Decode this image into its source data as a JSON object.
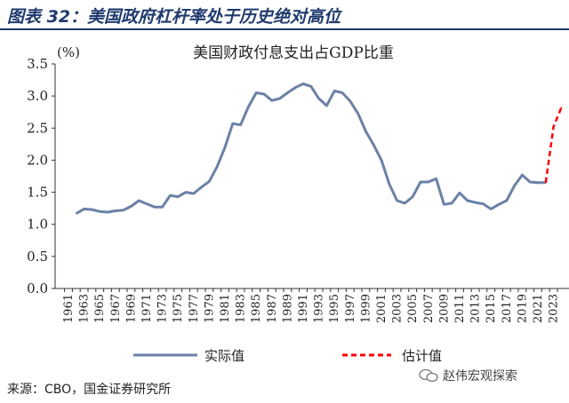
{
  "heading": "图表 32：美国政府杠杆率处于历史绝对高位",
  "source": "来源：CBO，国金证券研究所",
  "watermark": {
    "text": "赵伟宏观探索",
    "icon": "wechat-icon"
  },
  "colors": {
    "heading": "#1f3a6e",
    "actual": "#6b81a6",
    "estimate": "#ff0000",
    "axis": "#333333"
  },
  "chart_data": {
    "type": "line",
    "title": "美国财政付息支出占GDP比重",
    "unit_label": "(%)",
    "ylim": [
      0,
      3.5
    ],
    "yticks": [
      "0.0",
      "0.5",
      "1.0",
      "1.5",
      "2.0",
      "2.5",
      "3.0",
      "3.5"
    ],
    "xlim": [
      1961,
      2024
    ],
    "xticks": [
      "1961",
      "1963",
      "1965",
      "1967",
      "1969",
      "1971",
      "1973",
      "1975",
      "1977",
      "1979",
      "1981",
      "1983",
      "1985",
      "1987",
      "1989",
      "1991",
      "1993",
      "1995",
      "1997",
      "1999",
      "2001",
      "2003",
      "2005",
      "2007",
      "2009",
      "2011",
      "2013",
      "2015",
      "2017",
      "2019",
      "2021",
      "2023"
    ],
    "grid": false,
    "legend_position": "bottom",
    "series": [
      {
        "name": "实际值",
        "style": "solid",
        "x": [
          1962,
          1963,
          1964,
          1965,
          1966,
          1967,
          1968,
          1969,
          1970,
          1971,
          1972,
          1973,
          1974,
          1975,
          1976,
          1977,
          1978,
          1979,
          1980,
          1981,
          1982,
          1983,
          1984,
          1985,
          1986,
          1987,
          1988,
          1989,
          1990,
          1991,
          1992,
          1993,
          1994,
          1995,
          1996,
          1997,
          1998,
          1999,
          2000,
          2001,
          2002,
          2003,
          2004,
          2005,
          2006,
          2007,
          2008,
          2009,
          2010,
          2011,
          2012,
          2013,
          2014,
          2015,
          2016,
          2017,
          2018,
          2019,
          2020,
          2021,
          2022
        ],
        "y": [
          1.17,
          1.24,
          1.23,
          1.2,
          1.19,
          1.21,
          1.22,
          1.28,
          1.37,
          1.32,
          1.27,
          1.27,
          1.45,
          1.43,
          1.5,
          1.48,
          1.58,
          1.67,
          1.9,
          2.2,
          2.57,
          2.55,
          2.83,
          3.05,
          3.03,
          2.93,
          2.96,
          3.05,
          3.13,
          3.19,
          3.15,
          2.96,
          2.85,
          3.08,
          3.05,
          2.92,
          2.73,
          2.45,
          2.24,
          2.0,
          1.63,
          1.37,
          1.33,
          1.43,
          1.66,
          1.66,
          1.71,
          1.31,
          1.33,
          1.49,
          1.37,
          1.34,
          1.32,
          1.24,
          1.31,
          1.37,
          1.6,
          1.77,
          1.66,
          1.65,
          1.65
        ]
      },
      {
        "name": "估计值",
        "style": "dashed",
        "x": [
          2022,
          2023,
          2024
        ],
        "y": [
          1.65,
          2.52,
          2.82
        ]
      }
    ]
  }
}
